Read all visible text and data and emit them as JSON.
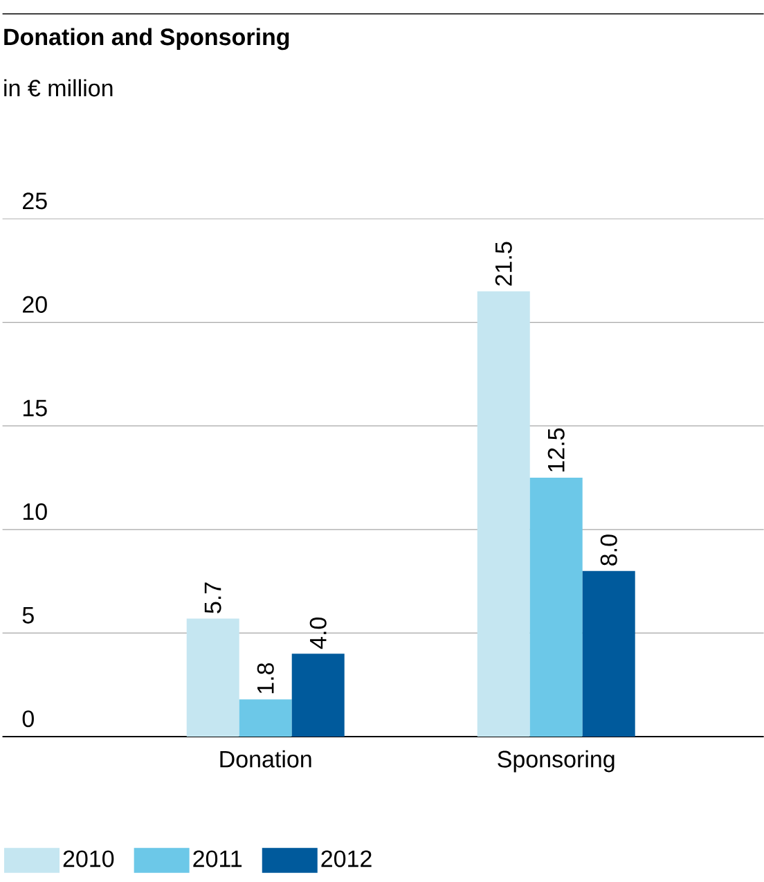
{
  "chart_data": {
    "type": "bar",
    "title": "Donation and Sponsoring",
    "subtitle": "in € million",
    "categories": [
      "Donation",
      "Sponsoring"
    ],
    "series": [
      {
        "name": "2010",
        "color": "#c5e6f1",
        "values": [
          5.7,
          21.5
        ],
        "value_labels": [
          "5.7",
          "21.5"
        ]
      },
      {
        "name": "2011",
        "color": "#6cc8e8",
        "values": [
          1.8,
          12.5
        ],
        "value_labels": [
          "1.8",
          "12.5"
        ]
      },
      {
        "name": "2012",
        "color": "#005a9c",
        "values": [
          4.0,
          8.0
        ],
        "value_labels": [
          "4.0",
          "8.0"
        ]
      }
    ],
    "ylim": [
      0,
      25
    ],
    "yticks": [
      0,
      5,
      10,
      15,
      20,
      25
    ],
    "grid": "y",
    "legend": "bottom left"
  }
}
